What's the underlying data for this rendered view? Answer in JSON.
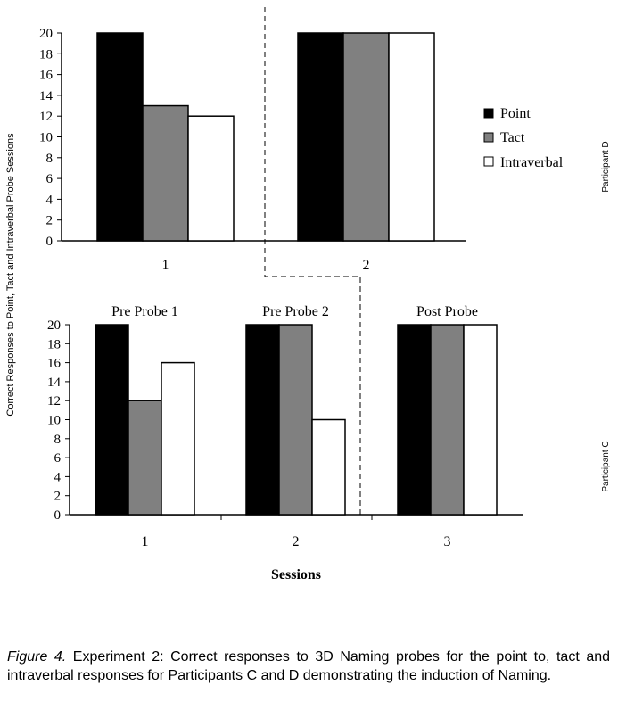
{
  "y_axis_label": "Correct Responses to Point, Tact and Intraverbal Probe Sessions",
  "x_axis_label": "Sessions",
  "legend": [
    {
      "label": "Point",
      "color": "#000000"
    },
    {
      "label": "Tact",
      "color": "#808080"
    },
    {
      "label": "Intraverbal",
      "color": "#ffffff"
    }
  ],
  "caption": {
    "label": "Figure 4.",
    "text": "Experiment 2: Correct responses to 3D Naming probes for the point to, tact and intraverbal responses for Participants C and D demonstrating the induction of Naming."
  },
  "chart_data": [
    {
      "type": "bar",
      "participant": "Participant D",
      "categories": [
        "1",
        "2"
      ],
      "category_titles": [
        "",
        ""
      ],
      "series": [
        {
          "name": "Point",
          "values": [
            20,
            20
          ]
        },
        {
          "name": "Tact",
          "values": [
            13,
            20
          ]
        },
        {
          "name": "Intraverbal",
          "values": [
            12,
            20
          ]
        }
      ],
      "ylim": [
        0,
        20
      ],
      "yticks": [
        0,
        2,
        4,
        6,
        8,
        10,
        12,
        14,
        16,
        18,
        20
      ]
    },
    {
      "type": "bar",
      "participant": "Participant C",
      "categories": [
        "1",
        "2",
        "3"
      ],
      "category_titles": [
        "Pre Probe 1",
        "Pre Probe 2",
        "Post Probe"
      ],
      "series": [
        {
          "name": "Point",
          "values": [
            20,
            20,
            20
          ]
        },
        {
          "name": "Tact",
          "values": [
            12,
            20,
            20
          ]
        },
        {
          "name": "Intraverbal",
          "values": [
            16,
            10,
            20
          ]
        }
      ],
      "ylim": [
        0,
        20
      ],
      "yticks": [
        0,
        2,
        4,
        6,
        8,
        10,
        12,
        14,
        16,
        18,
        20
      ]
    }
  ]
}
